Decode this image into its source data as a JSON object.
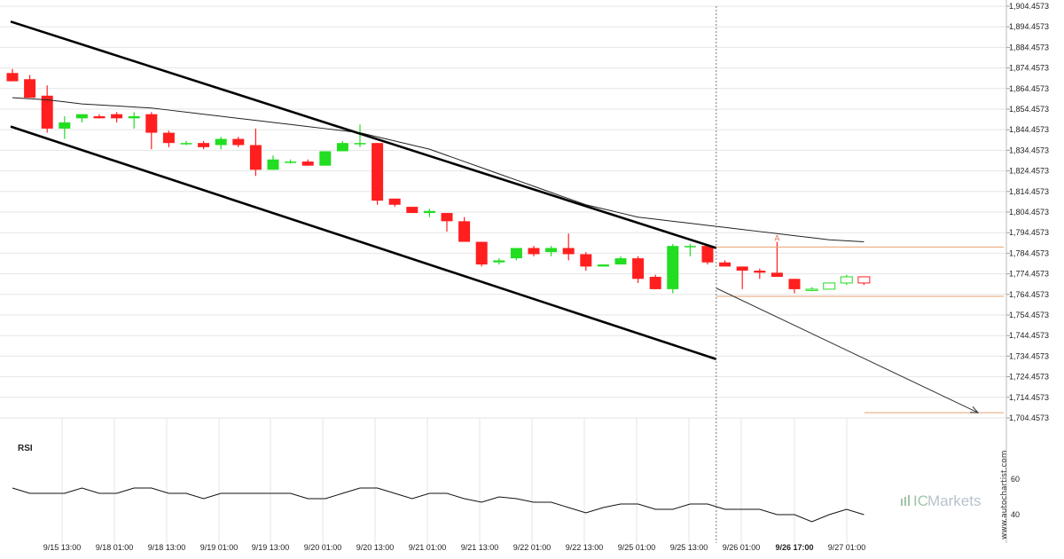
{
  "colors": {
    "bull": "#22dd22",
    "bear": "#ff1f1f",
    "channel": "#000000",
    "moving_average": "#222222",
    "level_line": "#e8a070",
    "grid": "#e6e6e6",
    "pattern_marker": "#e07050"
  },
  "watermark": {
    "side_text": "www.autochartist.com",
    "brand_ic": "IC",
    "brand_name": "Markets"
  },
  "rsi_panel": {
    "label": "RSI",
    "ticks": [
      "60",
      "40"
    ]
  },
  "pattern_marker_label": "A",
  "chart_data": {
    "type": "candlestick",
    "y_ticks": [
      "1,904.4573",
      "1,894.4573",
      "1,884.4573",
      "1,874.4573",
      "1,864.4573",
      "1,854.4573",
      "1,844.4573",
      "1,834.4573",
      "1,824.4573",
      "1,814.4573",
      "1,804.4573",
      "1,794.4573",
      "1,784.4573",
      "1,774.4573",
      "1,764.4573",
      "1,754.4573",
      "1,744.4573",
      "1,734.4573",
      "1,724.4573",
      "1,714.4573",
      "1,704.4573"
    ],
    "ylim": [
      1702,
      1906
    ],
    "x_ticks": [
      "9/15 13:00",
      "9/18 01:00",
      "9/18 13:00",
      "9/19 01:00",
      "9/19 13:00",
      "9/20 01:00",
      "9/20 13:00",
      "9/21 01:00",
      "9/21 13:00",
      "9/22 01:00",
      "9/22 13:00",
      "9/25 01:00",
      "9/25 13:00",
      "9/26 01:00",
      "9/26 17:00",
      "9/27 01:00"
    ],
    "highlighted_x_tick": "9/26 17:00",
    "candles": [
      {
        "o": 1872,
        "h": 1874,
        "l": 1868,
        "c": 1868
      },
      {
        "o": 1869,
        "h": 1871,
        "l": 1860,
        "c": 1860
      },
      {
        "o": 1861,
        "h": 1866,
        "l": 1843,
        "c": 1845
      },
      {
        "o": 1845,
        "h": 1851,
        "l": 1840,
        "c": 1848
      },
      {
        "o": 1850,
        "h": 1852,
        "l": 1848,
        "c": 1852
      },
      {
        "o": 1851,
        "h": 1852,
        "l": 1850,
        "c": 1850
      },
      {
        "o": 1852,
        "h": 1853,
        "l": 1848,
        "c": 1850
      },
      {
        "o": 1850,
        "h": 1853,
        "l": 1845,
        "c": 1851
      },
      {
        "o": 1852,
        "h": 1853,
        "l": 1835,
        "c": 1843
      },
      {
        "o": 1843,
        "h": 1844,
        "l": 1836,
        "c": 1838
      },
      {
        "o": 1838,
        "h": 1839,
        "l": 1837,
        "c": 1838
      },
      {
        "o": 1838,
        "h": 1839,
        "l": 1835,
        "c": 1836
      },
      {
        "o": 1837,
        "h": 1841,
        "l": 1835,
        "c": 1840
      },
      {
        "o": 1840,
        "h": 1841,
        "l": 1836,
        "c": 1837
      },
      {
        "o": 1837,
        "h": 1845,
        "l": 1822,
        "c": 1825
      },
      {
        "o": 1825,
        "h": 1832,
        "l": 1825,
        "c": 1830
      },
      {
        "o": 1829,
        "h": 1830,
        "l": 1828,
        "c": 1829
      },
      {
        "o": 1829,
        "h": 1830,
        "l": 1827,
        "c": 1827
      },
      {
        "o": 1827,
        "h": 1834,
        "l": 1827,
        "c": 1834
      },
      {
        "o": 1834,
        "h": 1839,
        "l": 1834,
        "c": 1838
      },
      {
        "o": 1838,
        "h": 1847,
        "l": 1836,
        "c": 1838
      },
      {
        "o": 1838,
        "h": 1838,
        "l": 1808,
        "c": 1810
      },
      {
        "o": 1811,
        "h": 1811,
        "l": 1807,
        "c": 1808
      },
      {
        "o": 1807,
        "h": 1807,
        "l": 1804,
        "c": 1804
      },
      {
        "o": 1804,
        "h": 1806,
        "l": 1802,
        "c": 1805
      },
      {
        "o": 1804,
        "h": 1804,
        "l": 1795,
        "c": 1800
      },
      {
        "o": 1800,
        "h": 1802,
        "l": 1790,
        "c": 1790
      },
      {
        "o": 1790,
        "h": 1790,
        "l": 1778,
        "c": 1779
      },
      {
        "o": 1780,
        "h": 1782,
        "l": 1779,
        "c": 1781
      },
      {
        "o": 1782,
        "h": 1787,
        "l": 1781,
        "c": 1787
      },
      {
        "o": 1787,
        "h": 1788,
        "l": 1783,
        "c": 1784
      },
      {
        "o": 1785,
        "h": 1788,
        "l": 1783,
        "c": 1787
      },
      {
        "o": 1787,
        "h": 1794,
        "l": 1781,
        "c": 1784
      },
      {
        "o": 1784,
        "h": 1785,
        "l": 1776,
        "c": 1778
      },
      {
        "o": 1778,
        "h": 1779,
        "l": 1778,
        "c": 1779
      },
      {
        "o": 1779,
        "h": 1783,
        "l": 1779,
        "c": 1782
      },
      {
        "o": 1782,
        "h": 1783,
        "l": 1770,
        "c": 1772
      },
      {
        "o": 1773,
        "h": 1774,
        "l": 1767,
        "c": 1767
      },
      {
        "o": 1767,
        "h": 1789,
        "l": 1765,
        "c": 1788
      },
      {
        "o": 1788,
        "h": 1789,
        "l": 1783,
        "c": 1788
      },
      {
        "o": 1788,
        "h": 1788,
        "l": 1779,
        "c": 1780
      },
      {
        "o": 1780,
        "h": 1781,
        "l": 1778,
        "c": 1778
      },
      {
        "o": 1778,
        "h": 1778,
        "l": 1767,
        "c": 1776
      },
      {
        "o": 1776,
        "h": 1777,
        "l": 1772,
        "c": 1775
      },
      {
        "o": 1775,
        "h": 1790,
        "l": 1773,
        "c": 1773
      },
      {
        "o": 1772,
        "h": 1772,
        "l": 1765,
        "c": 1767
      },
      {
        "o": 1767,
        "h": 1768,
        "l": 1766,
        "c": 1767
      },
      {
        "o": 1767,
        "h": 1770,
        "l": 1767,
        "c": 1770
      },
      {
        "o": 1770,
        "h": 1774,
        "l": 1769,
        "c": 1773
      },
      {
        "o": 1773,
        "h": 1773,
        "l": 1769,
        "c": 1770
      }
    ],
    "moving_average": [
      1860,
      1859.5,
      1859,
      1858,
      1857,
      1856.5,
      1856,
      1855.5,
      1855,
      1854,
      1853,
      1852,
      1851,
      1850,
      1849,
      1848,
      1847,
      1846,
      1845,
      1844,
      1843,
      1841,
      1839,
      1837,
      1835,
      1832,
      1829,
      1826,
      1823,
      1820,
      1817,
      1814,
      1811,
      1808,
      1806,
      1804,
      1802,
      1801,
      1800,
      1799,
      1798,
      1797,
      1796,
      1795,
      1794,
      1793,
      1792,
      1791,
      1790.5,
      1790
    ],
    "channel_upper": {
      "from": [
        0,
        1897
      ],
      "to": [
        40.5,
        1787
      ]
    },
    "channel_lower": {
      "from": [
        0,
        1846
      ],
      "to": [
        40.5,
        1733
      ]
    },
    "pattern_line_value": 1787.5,
    "breakout_level": 1763.5,
    "target_level": 1707,
    "projection": {
      "from": [
        40.5,
        1767.5
      ],
      "to": [
        47.7,
        1707
      ]
    },
    "breakout_candle_index": 40.5,
    "rsi": [
      55,
      52,
      52,
      52,
      55,
      52,
      52,
      55,
      55,
      52,
      52,
      49,
      52,
      52,
      52,
      52,
      52,
      49,
      49,
      52,
      55,
      55,
      52,
      49,
      52,
      52,
      49,
      47,
      50,
      49,
      47,
      47,
      44,
      41,
      44,
      46,
      46,
      43,
      43,
      46,
      46,
      43,
      43,
      43,
      40,
      40,
      36,
      40,
      43,
      40
    ]
  }
}
